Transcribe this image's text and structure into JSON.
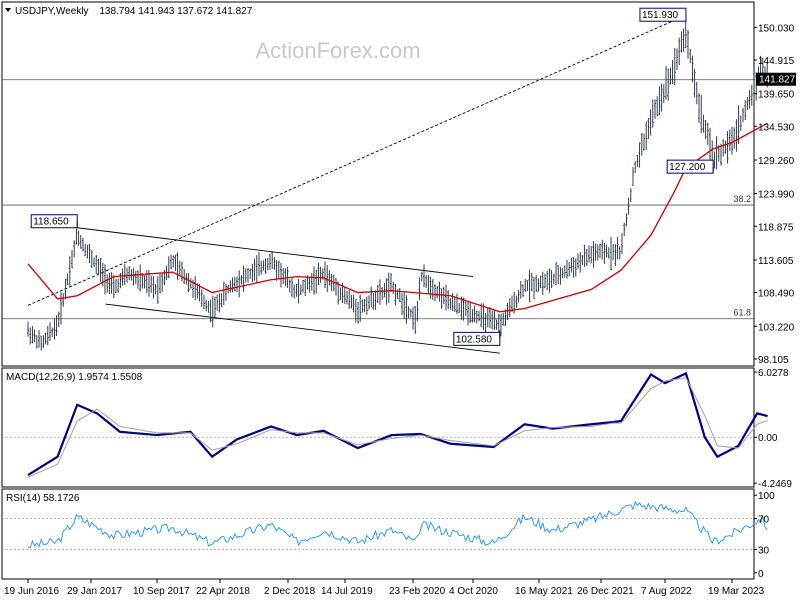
{
  "header": {
    "symbol": "USDJPY,Weekly",
    "ohlc": "138.794 141.943 137.672 141.827"
  },
  "watermark": "ActionForex.com",
  "colors": {
    "background": "#ffffff",
    "bars": "#1a2a3a",
    "ma": "#cc0000",
    "macd": "#000080",
    "signal": "#a0a0a0",
    "rsi": "#1e90ff",
    "grid": "#9a9a9a",
    "axis_text": "#000000",
    "watermark": "#c8c8c8",
    "price_box": "#000000"
  },
  "chart_data": [
    {
      "type": "line",
      "title": "USDJPY,Weekly",
      "price_axis": {
        "ticks": [
          {
            "value": 150.03,
            "label": "150.030"
          },
          {
            "value": 144.915,
            "label": "144.915"
          },
          {
            "value": 139.65,
            "label": "139.650"
          },
          {
            "value": 134.53,
            "label": "134.530"
          },
          {
            "value": 129.26,
            "label": "129.260"
          },
          {
            "value": 123.99,
            "label": "123.990"
          },
          {
            "value": 118.875,
            "label": "118.875"
          },
          {
            "value": 113.605,
            "label": "113.605"
          },
          {
            "value": 108.49,
            "label": "108.490"
          },
          {
            "value": 103.22,
            "label": "103.220"
          },
          {
            "value": 98.105,
            "label": "98.105"
          }
        ],
        "ylim": [
          97.0,
          154.0
        ],
        "current_price": {
          "value": 141.827,
          "label": "141.827"
        }
      },
      "x_axis": {
        "labels": [
          "19 Jun 2016",
          "29 Jan 2017",
          "10 Sep 2017",
          "22 Apr 2018",
          "2 Dec 2018",
          "14 Jul 2019",
          "23 Feb 2020",
          "4 Oct 2020",
          "16 May 2021",
          "26 Dec 2021",
          "7 Aug 2022",
          "19 Mar 2023"
        ]
      },
      "annotations": [
        {
          "label": "151.930",
          "date": "2022-10-16",
          "value": 151.93
        },
        {
          "label": "127.200",
          "date": "2023-01-15",
          "value": 127.2
        },
        {
          "label": "118.650",
          "date": "2016-12-11",
          "value": 118.65
        },
        {
          "label": "102.580",
          "date": "2021-01-03",
          "value": 102.58
        }
      ],
      "fibonacci_levels": [
        {
          "label": "38.2",
          "value": 122.2
        },
        {
          "label": "61.8",
          "value": 104.4
        }
      ],
      "horizontal_lines": [
        141.827,
        122.2,
        104.4
      ],
      "trendlines": [
        {
          "style": "dashed",
          "from": {
            "date": "2016-06-19",
            "value": 106.5
          },
          "to": {
            "date": "2022-10-16",
            "value": 151.93
          }
        },
        {
          "style": "solid",
          "from": {
            "date": "2016-12-11",
            "value": 118.65
          },
          "to": {
            "date": "2020-10-04",
            "value": 111.0
          }
        },
        {
          "style": "solid",
          "from": {
            "date": "2017-03-19",
            "value": 106.7
          },
          "to": {
            "date": "2021-01-03",
            "value": 99.0
          }
        }
      ],
      "price_path": [
        {
          "date": "2016-06-19",
          "value": 102.5
        },
        {
          "date": "2016-08-07",
          "value": 100.4
        },
        {
          "date": "2016-10-02",
          "value": 103.5
        },
        {
          "date": "2016-12-11",
          "value": 117.5
        },
        {
          "date": "2017-01-29",
          "value": 114.0
        },
        {
          "date": "2017-04-16",
          "value": 109.0
        },
        {
          "date": "2017-06-04",
          "value": 111.5
        },
        {
          "date": "2017-09-10",
          "value": 109.0
        },
        {
          "date": "2017-11-05",
          "value": 113.5
        },
        {
          "date": "2018-03-25",
          "value": 105.5
        },
        {
          "date": "2018-05-27",
          "value": 109.5
        },
        {
          "date": "2018-10-07",
          "value": 113.5
        },
        {
          "date": "2019-01-06",
          "value": 108.5
        },
        {
          "date": "2019-04-21",
          "value": 111.5
        },
        {
          "date": "2019-08-25",
          "value": 105.8
        },
        {
          "date": "2019-12-15",
          "value": 109.5
        },
        {
          "date": "2020-03-08",
          "value": 104.0
        },
        {
          "date": "2020-03-22",
          "value": 111.0
        },
        {
          "date": "2020-07-12",
          "value": 106.8
        },
        {
          "date": "2021-01-03",
          "value": 103.3
        },
        {
          "date": "2021-03-28",
          "value": 109.5
        },
        {
          "date": "2021-07-04",
          "value": 110.5
        },
        {
          "date": "2021-11-21",
          "value": 114.5
        },
        {
          "date": "2022-03-06",
          "value": 115.0
        },
        {
          "date": "2022-04-24",
          "value": 128.0
        },
        {
          "date": "2022-06-19",
          "value": 135.5
        },
        {
          "date": "2022-09-04",
          "value": 143.5
        },
        {
          "date": "2022-10-16",
          "value": 149.5
        },
        {
          "date": "2022-11-27",
          "value": 138.0
        },
        {
          "date": "2023-01-15",
          "value": 129.5
        },
        {
          "date": "2023-03-19",
          "value": 132.0
        },
        {
          "date": "2023-05-28",
          "value": 140.0
        },
        {
          "date": "2023-06-25",
          "value": 144.0
        },
        {
          "date": "2023-07-16",
          "value": 141.8
        }
      ],
      "moving_average": [
        {
          "date": "2016-06-19",
          "value": 113.0
        },
        {
          "date": "2016-10-02",
          "value": 107.5
        },
        {
          "date": "2016-12-11",
          "value": 108.0
        },
        {
          "date": "2017-04-16",
          "value": 111.0
        },
        {
          "date": "2017-11-05",
          "value": 111.7
        },
        {
          "date": "2018-03-25",
          "value": 108.5
        },
        {
          "date": "2018-10-07",
          "value": 110.5
        },
        {
          "date": "2019-01-06",
          "value": 111.0
        },
        {
          "date": "2019-04-21",
          "value": 110.8
        },
        {
          "date": "2019-08-25",
          "value": 108.5
        },
        {
          "date": "2019-12-15",
          "value": 108.8
        },
        {
          "date": "2020-07-12",
          "value": 108.0
        },
        {
          "date": "2021-01-03",
          "value": 105.5
        },
        {
          "date": "2021-03-28",
          "value": 106.0
        },
        {
          "date": "2021-11-21",
          "value": 109.0
        },
        {
          "date": "2022-03-06",
          "value": 112.0
        },
        {
          "date": "2022-06-19",
          "value": 117.5
        },
        {
          "date": "2022-09-04",
          "value": 124.0
        },
        {
          "date": "2022-10-16",
          "value": 128.0
        },
        {
          "date": "2023-01-15",
          "value": 131.0
        },
        {
          "date": "2023-03-19",
          "value": 132.0
        },
        {
          "date": "2023-06-25",
          "value": 134.5
        },
        {
          "date": "2023-07-16",
          "value": 135.0
        }
      ]
    },
    {
      "type": "line",
      "title": "MACD(12,26,9) 1.9574 1.5508",
      "ticks": [
        {
          "value": 6.0278,
          "label": "6.0278"
        },
        {
          "value": 0.0,
          "label": "0.00"
        },
        {
          "value": -4.2469,
          "label": "-4.2469"
        }
      ],
      "ylim": [
        -4.6,
        6.4
      ],
      "series": [
        {
          "name": "MACD",
          "points": [
            {
              "date": "2016-06-19",
              "value": -3.5
            },
            {
              "date": "2016-10-02",
              "value": -1.8
            },
            {
              "date": "2016-12-11",
              "value": 3.0
            },
            {
              "date": "2017-02-19",
              "value": 2.2
            },
            {
              "date": "2017-05-07",
              "value": 0.5
            },
            {
              "date": "2017-09-10",
              "value": 0.2
            },
            {
              "date": "2018-01-07",
              "value": 0.5
            },
            {
              "date": "2018-03-25",
              "value": -1.8
            },
            {
              "date": "2018-06-17",
              "value": -0.2
            },
            {
              "date": "2018-10-07",
              "value": 1.0
            },
            {
              "date": "2019-01-06",
              "value": 0.2
            },
            {
              "date": "2019-04-21",
              "value": 0.6
            },
            {
              "date": "2019-08-25",
              "value": -1.0
            },
            {
              "date": "2019-12-15",
              "value": 0.2
            },
            {
              "date": "2020-03-22",
              "value": 0.3
            },
            {
              "date": "2020-07-12",
              "value": -0.6
            },
            {
              "date": "2020-12-13",
              "value": -0.9
            },
            {
              "date": "2021-03-28",
              "value": 1.2
            },
            {
              "date": "2021-07-04",
              "value": 0.8
            },
            {
              "date": "2021-11-21",
              "value": 1.2
            },
            {
              "date": "2022-02-06",
              "value": 1.4
            },
            {
              "date": "2022-03-06",
              "value": 1.5
            },
            {
              "date": "2022-06-19",
              "value": 5.8
            },
            {
              "date": "2022-08-07",
              "value": 5.0
            },
            {
              "date": "2022-10-16",
              "value": 5.9
            },
            {
              "date": "2022-12-18",
              "value": 0.0
            },
            {
              "date": "2023-01-29",
              "value": -1.8
            },
            {
              "date": "2023-04-09",
              "value": -0.8
            },
            {
              "date": "2023-06-11",
              "value": 2.2
            },
            {
              "date": "2023-07-16",
              "value": 1.9574
            }
          ]
        },
        {
          "name": "Signal",
          "points": [
            {
              "date": "2016-06-19",
              "value": -3.7
            },
            {
              "date": "2016-10-02",
              "value": -2.5
            },
            {
              "date": "2016-12-11",
              "value": 1.5
            },
            {
              "date": "2017-02-19",
              "value": 2.6
            },
            {
              "date": "2017-05-07",
              "value": 1.0
            },
            {
              "date": "2017-09-10",
              "value": 0.4
            },
            {
              "date": "2018-01-07",
              "value": 0.4
            },
            {
              "date": "2018-03-25",
              "value": -1.2
            },
            {
              "date": "2018-06-17",
              "value": -0.6
            },
            {
              "date": "2018-10-07",
              "value": 0.7
            },
            {
              "date": "2019-01-06",
              "value": 0.4
            },
            {
              "date": "2019-04-21",
              "value": 0.4
            },
            {
              "date": "2019-08-25",
              "value": -0.7
            },
            {
              "date": "2019-12-15",
              "value": -0.1
            },
            {
              "date": "2020-03-22",
              "value": 0.2
            },
            {
              "date": "2020-07-12",
              "value": -0.3
            },
            {
              "date": "2020-12-13",
              "value": -0.8
            },
            {
              "date": "2021-03-28",
              "value": 0.6
            },
            {
              "date": "2021-07-04",
              "value": 0.9
            },
            {
              "date": "2021-11-21",
              "value": 1.0
            },
            {
              "date": "2022-02-06",
              "value": 1.3
            },
            {
              "date": "2022-03-06",
              "value": 1.3
            },
            {
              "date": "2022-06-19",
              "value": 4.5
            },
            {
              "date": "2022-08-07",
              "value": 5.2
            },
            {
              "date": "2022-10-16",
              "value": 5.5
            },
            {
              "date": "2022-12-18",
              "value": 2.0
            },
            {
              "date": "2023-01-29",
              "value": -0.8
            },
            {
              "date": "2023-04-09",
              "value": -1.0
            },
            {
              "date": "2023-06-11",
              "value": 1.2
            },
            {
              "date": "2023-07-16",
              "value": 1.5508
            }
          ]
        }
      ]
    },
    {
      "type": "line",
      "title": "RSI(14) 58.1726",
      "ticks": [
        {
          "value": 100,
          "label": "100"
        },
        {
          "value": 70,
          "label": "70"
        },
        {
          "value": 30,
          "label": "30"
        },
        {
          "value": 0,
          "label": "0"
        }
      ],
      "ylim": [
        -8,
        108
      ],
      "reference_lines": [
        70,
        30
      ],
      "series": [
        {
          "name": "RSI",
          "points": [
            {
              "date": "2016-06-19",
              "value": 35
            },
            {
              "date": "2016-10-02",
              "value": 40
            },
            {
              "date": "2016-12-11",
              "value": 72
            },
            {
              "date": "2017-04-16",
              "value": 48
            },
            {
              "date": "2017-11-05",
              "value": 58
            },
            {
              "date": "2018-03-25",
              "value": 38
            },
            {
              "date": "2018-10-07",
              "value": 62
            },
            {
              "date": "2019-01-06",
              "value": 40
            },
            {
              "date": "2019-04-21",
              "value": 55
            },
            {
              "date": "2019-08-25",
              "value": 40
            },
            {
              "date": "2019-12-15",
              "value": 55
            },
            {
              "date": "2020-03-08",
              "value": 38
            },
            {
              "date": "2020-03-22",
              "value": 62
            },
            {
              "date": "2020-12-13",
              "value": 38
            },
            {
              "date": "2021-03-28",
              "value": 72
            },
            {
              "date": "2021-07-04",
              "value": 55
            },
            {
              "date": "2021-11-21",
              "value": 68
            },
            {
              "date": "2022-04-24",
              "value": 88
            },
            {
              "date": "2022-10-16",
              "value": 80
            },
            {
              "date": "2023-01-15",
              "value": 40
            },
            {
              "date": "2023-03-19",
              "value": 50
            },
            {
              "date": "2023-06-25",
              "value": 70
            },
            {
              "date": "2023-07-16",
              "value": 58.17
            }
          ]
        }
      ]
    }
  ]
}
